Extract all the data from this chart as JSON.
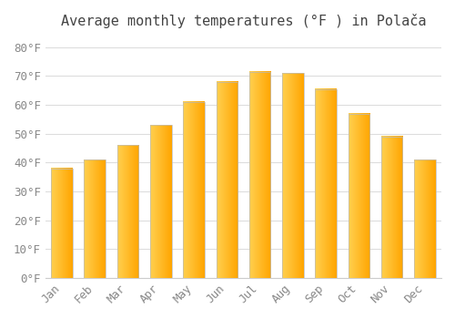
{
  "title": "Average monthly temperatures (°F ) in Polača",
  "months": [
    "Jan",
    "Feb",
    "Mar",
    "Apr",
    "May",
    "Jun",
    "Jul",
    "Aug",
    "Sep",
    "Oct",
    "Nov",
    "Dec"
  ],
  "values": [
    38,
    41,
    46,
    53,
    61,
    68,
    71.5,
    71,
    65.5,
    57,
    49,
    41
  ],
  "bar_color_left": "#FFD050",
  "bar_color_right": "#FFA500",
  "bar_edge_color": "#BBBBBB",
  "background_color": "#FFFFFF",
  "grid_color": "#DDDDDD",
  "ylim": [
    0,
    84
  ],
  "yticks": [
    0,
    10,
    20,
    30,
    40,
    50,
    60,
    70,
    80
  ],
  "tick_label_color": "#888888",
  "title_fontsize": 11,
  "tick_fontsize": 9,
  "bar_width": 0.65
}
